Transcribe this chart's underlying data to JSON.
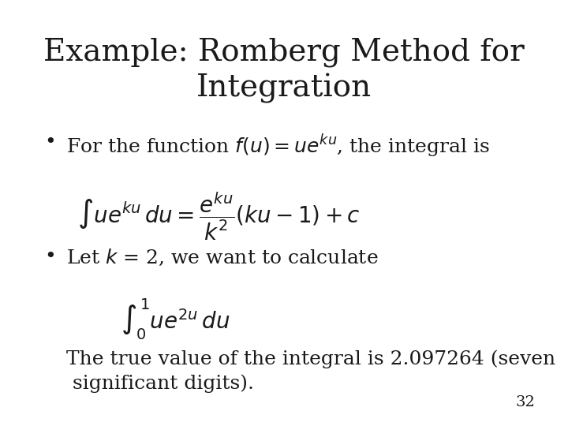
{
  "title_line1": "Example: Romberg Method for",
  "title_line2": "Integration",
  "title_fontsize": 28,
  "title_color": "#1a1a1a",
  "background_color": "#ffffff",
  "formula1": "$\\int u e^{ku}\\,du = \\dfrac{e^{ku}}{k^2}(ku - 1) + c$",
  "formula2": "$\\int_0^1 u e^{2u}\\,du$",
  "bullet1_str": "For the function $f(u) = ue^{ku}$, the integral is",
  "bullet2_str": "Let $k$ = 2, we want to calculate",
  "body_line1": "The true value of the integral is 2.097264 (seven",
  "body_line2": " significant digits).",
  "page_number": "32",
  "body_fontsize": 18,
  "formula_fontsize": 20,
  "page_fontsize": 14
}
